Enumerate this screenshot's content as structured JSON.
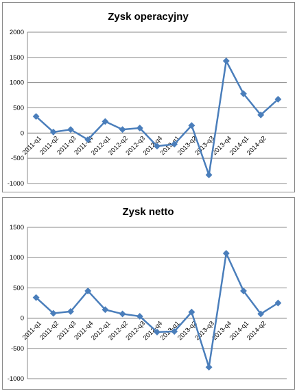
{
  "chart_data": [
    {
      "type": "line",
      "title": "Zysk operacyjny",
      "categories": [
        "2011-q1",
        "2011-q2",
        "2011-q3",
        "2011-q4",
        "2012-q1",
        "2012-q2",
        "2012-q3",
        "2012-q4",
        "2013-q1",
        "2013-q2",
        "2013-q3",
        "2013-q4",
        "2014-q1",
        "2014-q2",
        null
      ],
      "series": [
        {
          "name": "Zysk operacyjny",
          "color": "#4a7ebb",
          "values": [
            330,
            20,
            70,
            -130,
            230,
            70,
            100,
            -260,
            -220,
            150,
            -830,
            1430,
            780,
            360,
            670
          ]
        }
      ],
      "ylim": [
        -1000,
        2000
      ],
      "yticks": [
        -1000,
        -500,
        0,
        500,
        1000,
        1500,
        2000
      ],
      "grid": true
    },
    {
      "type": "line",
      "title": "Zysk netto",
      "categories": [
        "2011-q1",
        "2011-q2",
        "2011-q3",
        "2011-q4",
        "2012-q1",
        "2012-q2",
        "2012-q3",
        "2012-q4",
        "2013-q1",
        "2013-q2",
        "2013-q3",
        "2013-q4",
        "2014-q1",
        "2014-q2",
        null
      ],
      "series": [
        {
          "name": "Zysk netto",
          "color": "#4a7ebb",
          "values": [
            340,
            80,
            110,
            450,
            140,
            70,
            30,
            -230,
            -220,
            100,
            -810,
            1070,
            450,
            70,
            250
          ]
        }
      ],
      "ylim": [
        -1000,
        1500
      ],
      "yticks": [
        -1000,
        -500,
        0,
        500,
        1000,
        1500
      ],
      "grid": true
    }
  ]
}
